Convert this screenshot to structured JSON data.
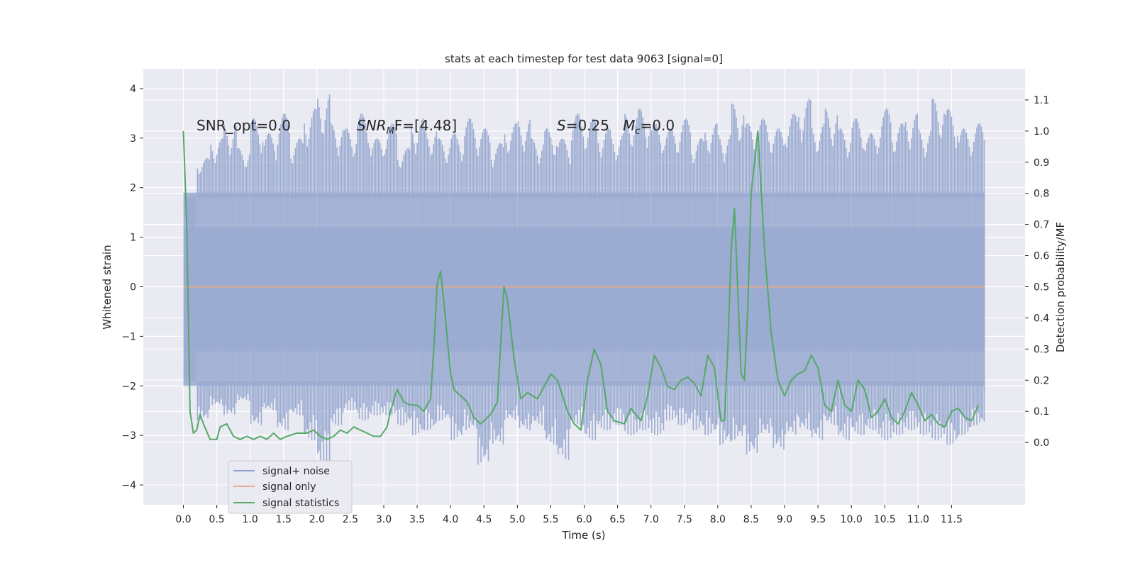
{
  "chart_data": {
    "type": "line",
    "title": "stats at each timestep for test data 9063 [signal=0]",
    "xlabel": "Time (s)",
    "ylabel_left": "Whitened strain",
    "ylabel_right": "Detection probability/MF",
    "xlim": [
      -0.6,
      12.6
    ],
    "ylim_left": [
      -4.4,
      4.4
    ],
    "ylim_right": [
      -0.2,
      1.2
    ],
    "grid": true,
    "x_ticks": [
      0.0,
      0.5,
      1.0,
      1.5,
      2.0,
      2.5,
      3.0,
      3.5,
      4.0,
      4.5,
      5.0,
      5.5,
      6.0,
      6.5,
      7.0,
      7.5,
      8.0,
      8.5,
      9.0,
      9.5,
      10.0,
      10.5,
      11.0,
      11.5
    ],
    "x_tick_labels": [
      "0.0",
      "0.5",
      "1.0",
      "1.5",
      "2.0",
      "2.5",
      "3.0",
      "3.5",
      "4.0",
      "4.5",
      "5.0",
      "5.5",
      "6.0",
      "6.5",
      "7.0",
      "7.5",
      "8.0",
      "8.5",
      "9.0",
      "9.5",
      "10.0",
      "10.5",
      "11.0",
      "11.5"
    ],
    "y_left_ticks": [
      4,
      3,
      2,
      1,
      0,
      -1,
      -2,
      -3,
      -4
    ],
    "y_left_tick_labels": [
      "4",
      "3",
      "2",
      "1",
      "0",
      "−1",
      "−2",
      "−3",
      "−4"
    ],
    "y_right_ticks": [
      1.1,
      1.0,
      0.9,
      0.8,
      0.7,
      0.6,
      0.5,
      0.4,
      0.3,
      0.2,
      0.1,
      0.0
    ],
    "y_right_tick_labels": [
      "1.1",
      "1.0",
      "0.9",
      "0.8",
      "0.7",
      "0.6",
      "0.5",
      "0.4",
      "0.3",
      "0.2",
      "0.1",
      "0.0"
    ],
    "annotations": [
      "SNR_opt=0.0",
      "SNR",
      "M",
      "F=[4.48]",
      "S",
      "=0.25   ",
      "M",
      "c",
      "=0.0"
    ],
    "legend": {
      "placement": "lower-left",
      "entries": [
        {
          "label": "signal+ noise",
          "color": "#8da0cb"
        },
        {
          "label": "signal only",
          "color": "#e5a98d"
        },
        {
          "label": "signal statistics",
          "color": "#55a868"
        }
      ]
    },
    "series": [
      {
        "name": "signal+ noise",
        "axis": "left",
        "color": "#8da0cb",
        "x_range": [
          0.0,
          12.0
        ],
        "envelope_upper": [
          1.2,
          2.6,
          3.0,
          3.3,
          2.8,
          3.4,
          3.1,
          3.5,
          3.0,
          3.6,
          3.9,
          3.3,
          3.2,
          3.5,
          3.0,
          3.3,
          2.8,
          3.4,
          3.2,
          3.0,
          3.1,
          3.4,
          3.2,
          2.9,
          3.3,
          3.4,
          3.0,
          3.2,
          3.0,
          3.5,
          3.4,
          3.2,
          3.1,
          3.5,
          3.6,
          3.3,
          3.2,
          3.4,
          3.0,
          3.3,
          3.1,
          3.7,
          3.3,
          3.4,
          3.2,
          3.5,
          3.8,
          3.3,
          3.6,
          3.2,
          3.4,
          3.1,
          3.6,
          3.3,
          3.5,
          3.2,
          3.8,
          3.6,
          3.2,
          3.3
        ],
        "envelope_lower": [
          -1.2,
          -2.7,
          -2.4,
          -2.6,
          -2.3,
          -2.8,
          -2.5,
          -2.9,
          -2.6,
          -3.1,
          -3.6,
          -2.8,
          -2.5,
          -2.7,
          -2.6,
          -2.6,
          -2.8,
          -3.0,
          -2.9,
          -2.7,
          -3.1,
          -2.9,
          -3.6,
          -3.2,
          -2.7,
          -2.9,
          -2.8,
          -3.2,
          -3.5,
          -2.8,
          -3.1,
          -2.9,
          -2.8,
          -3.0,
          -2.9,
          -3.0,
          -2.7,
          -2.8,
          -2.9,
          -3.0,
          -3.2,
          -3.1,
          -3.4,
          -3.0,
          -3.3,
          -3.0,
          -2.9,
          -3.1,
          -2.8,
          -3.1,
          -3.0,
          -2.9,
          -3.1,
          -3.0,
          -2.9,
          -3.0,
          -3.1,
          -3.2,
          -3.0,
          -2.8
        ]
      },
      {
        "name": "signal only",
        "axis": "left",
        "color": "#e5a98d",
        "x": [
          0.0,
          12.0
        ],
        "values": [
          0.0,
          0.0
        ]
      },
      {
        "name": "signal statistics",
        "axis": "right",
        "color": "#55a868",
        "x": [
          0.0,
          0.05,
          0.1,
          0.15,
          0.2,
          0.25,
          0.3,
          0.4,
          0.5,
          0.55,
          0.65,
          0.75,
          0.85,
          0.95,
          1.05,
          1.15,
          1.25,
          1.35,
          1.45,
          1.55,
          1.7,
          1.85,
          1.95,
          2.05,
          2.15,
          2.25,
          2.35,
          2.45,
          2.55,
          2.65,
          2.75,
          2.85,
          2.95,
          3.05,
          3.1,
          3.2,
          3.3,
          3.4,
          3.5,
          3.6,
          3.7,
          3.75,
          3.8,
          3.85,
          3.9,
          4.0,
          4.05,
          4.1,
          4.25,
          4.35,
          4.45,
          4.55,
          4.6,
          4.7,
          4.8,
          4.85,
          4.95,
          5.05,
          5.15,
          5.3,
          5.4,
          5.5,
          5.6,
          5.75,
          5.85,
          5.95,
          6.05,
          6.15,
          6.25,
          6.35,
          6.45,
          6.6,
          6.7,
          6.85,
          6.95,
          7.05,
          7.15,
          7.25,
          7.35,
          7.45,
          7.55,
          7.65,
          7.75,
          7.85,
          7.95,
          8.05,
          8.1,
          8.15,
          8.2,
          8.25,
          8.35,
          8.4,
          8.45,
          8.5,
          8.6,
          8.7,
          8.8,
          8.9,
          9.0,
          9.1,
          9.2,
          9.3,
          9.4,
          9.5,
          9.6,
          9.7,
          9.8,
          9.9,
          10.0,
          10.1,
          10.2,
          10.3,
          10.4,
          10.5,
          10.6,
          10.7,
          10.8,
          10.9,
          11.0,
          11.1,
          11.2,
          11.3,
          11.4,
          11.5,
          11.6,
          11.7,
          11.8,
          11.9
        ],
        "values": [
          1.0,
          0.7,
          0.1,
          0.03,
          0.04,
          0.09,
          0.06,
          0.01,
          0.01,
          0.05,
          0.06,
          0.02,
          0.01,
          0.02,
          0.01,
          0.02,
          0.01,
          0.03,
          0.01,
          0.02,
          0.03,
          0.03,
          0.04,
          0.02,
          0.01,
          0.02,
          0.04,
          0.03,
          0.05,
          0.04,
          0.03,
          0.02,
          0.02,
          0.05,
          0.1,
          0.17,
          0.13,
          0.12,
          0.12,
          0.1,
          0.14,
          0.3,
          0.51,
          0.55,
          0.45,
          0.22,
          0.17,
          0.16,
          0.13,
          0.08,
          0.06,
          0.08,
          0.09,
          0.13,
          0.5,
          0.46,
          0.27,
          0.14,
          0.16,
          0.14,
          0.18,
          0.22,
          0.2,
          0.1,
          0.06,
          0.04,
          0.2,
          0.3,
          0.25,
          0.1,
          0.07,
          0.06,
          0.11,
          0.07,
          0.15,
          0.28,
          0.24,
          0.18,
          0.17,
          0.2,
          0.21,
          0.19,
          0.15,
          0.28,
          0.24,
          0.07,
          0.07,
          0.3,
          0.62,
          0.75,
          0.22,
          0.2,
          0.43,
          0.8,
          1.0,
          0.62,
          0.35,
          0.2,
          0.15,
          0.2,
          0.22,
          0.23,
          0.28,
          0.24,
          0.12,
          0.1,
          0.2,
          0.12,
          0.1,
          0.2,
          0.17,
          0.08,
          0.1,
          0.14,
          0.08,
          0.06,
          0.1,
          0.16,
          0.12,
          0.07,
          0.09,
          0.06,
          0.05,
          0.1,
          0.11,
          0.08,
          0.07,
          0.12
        ]
      }
    ]
  }
}
